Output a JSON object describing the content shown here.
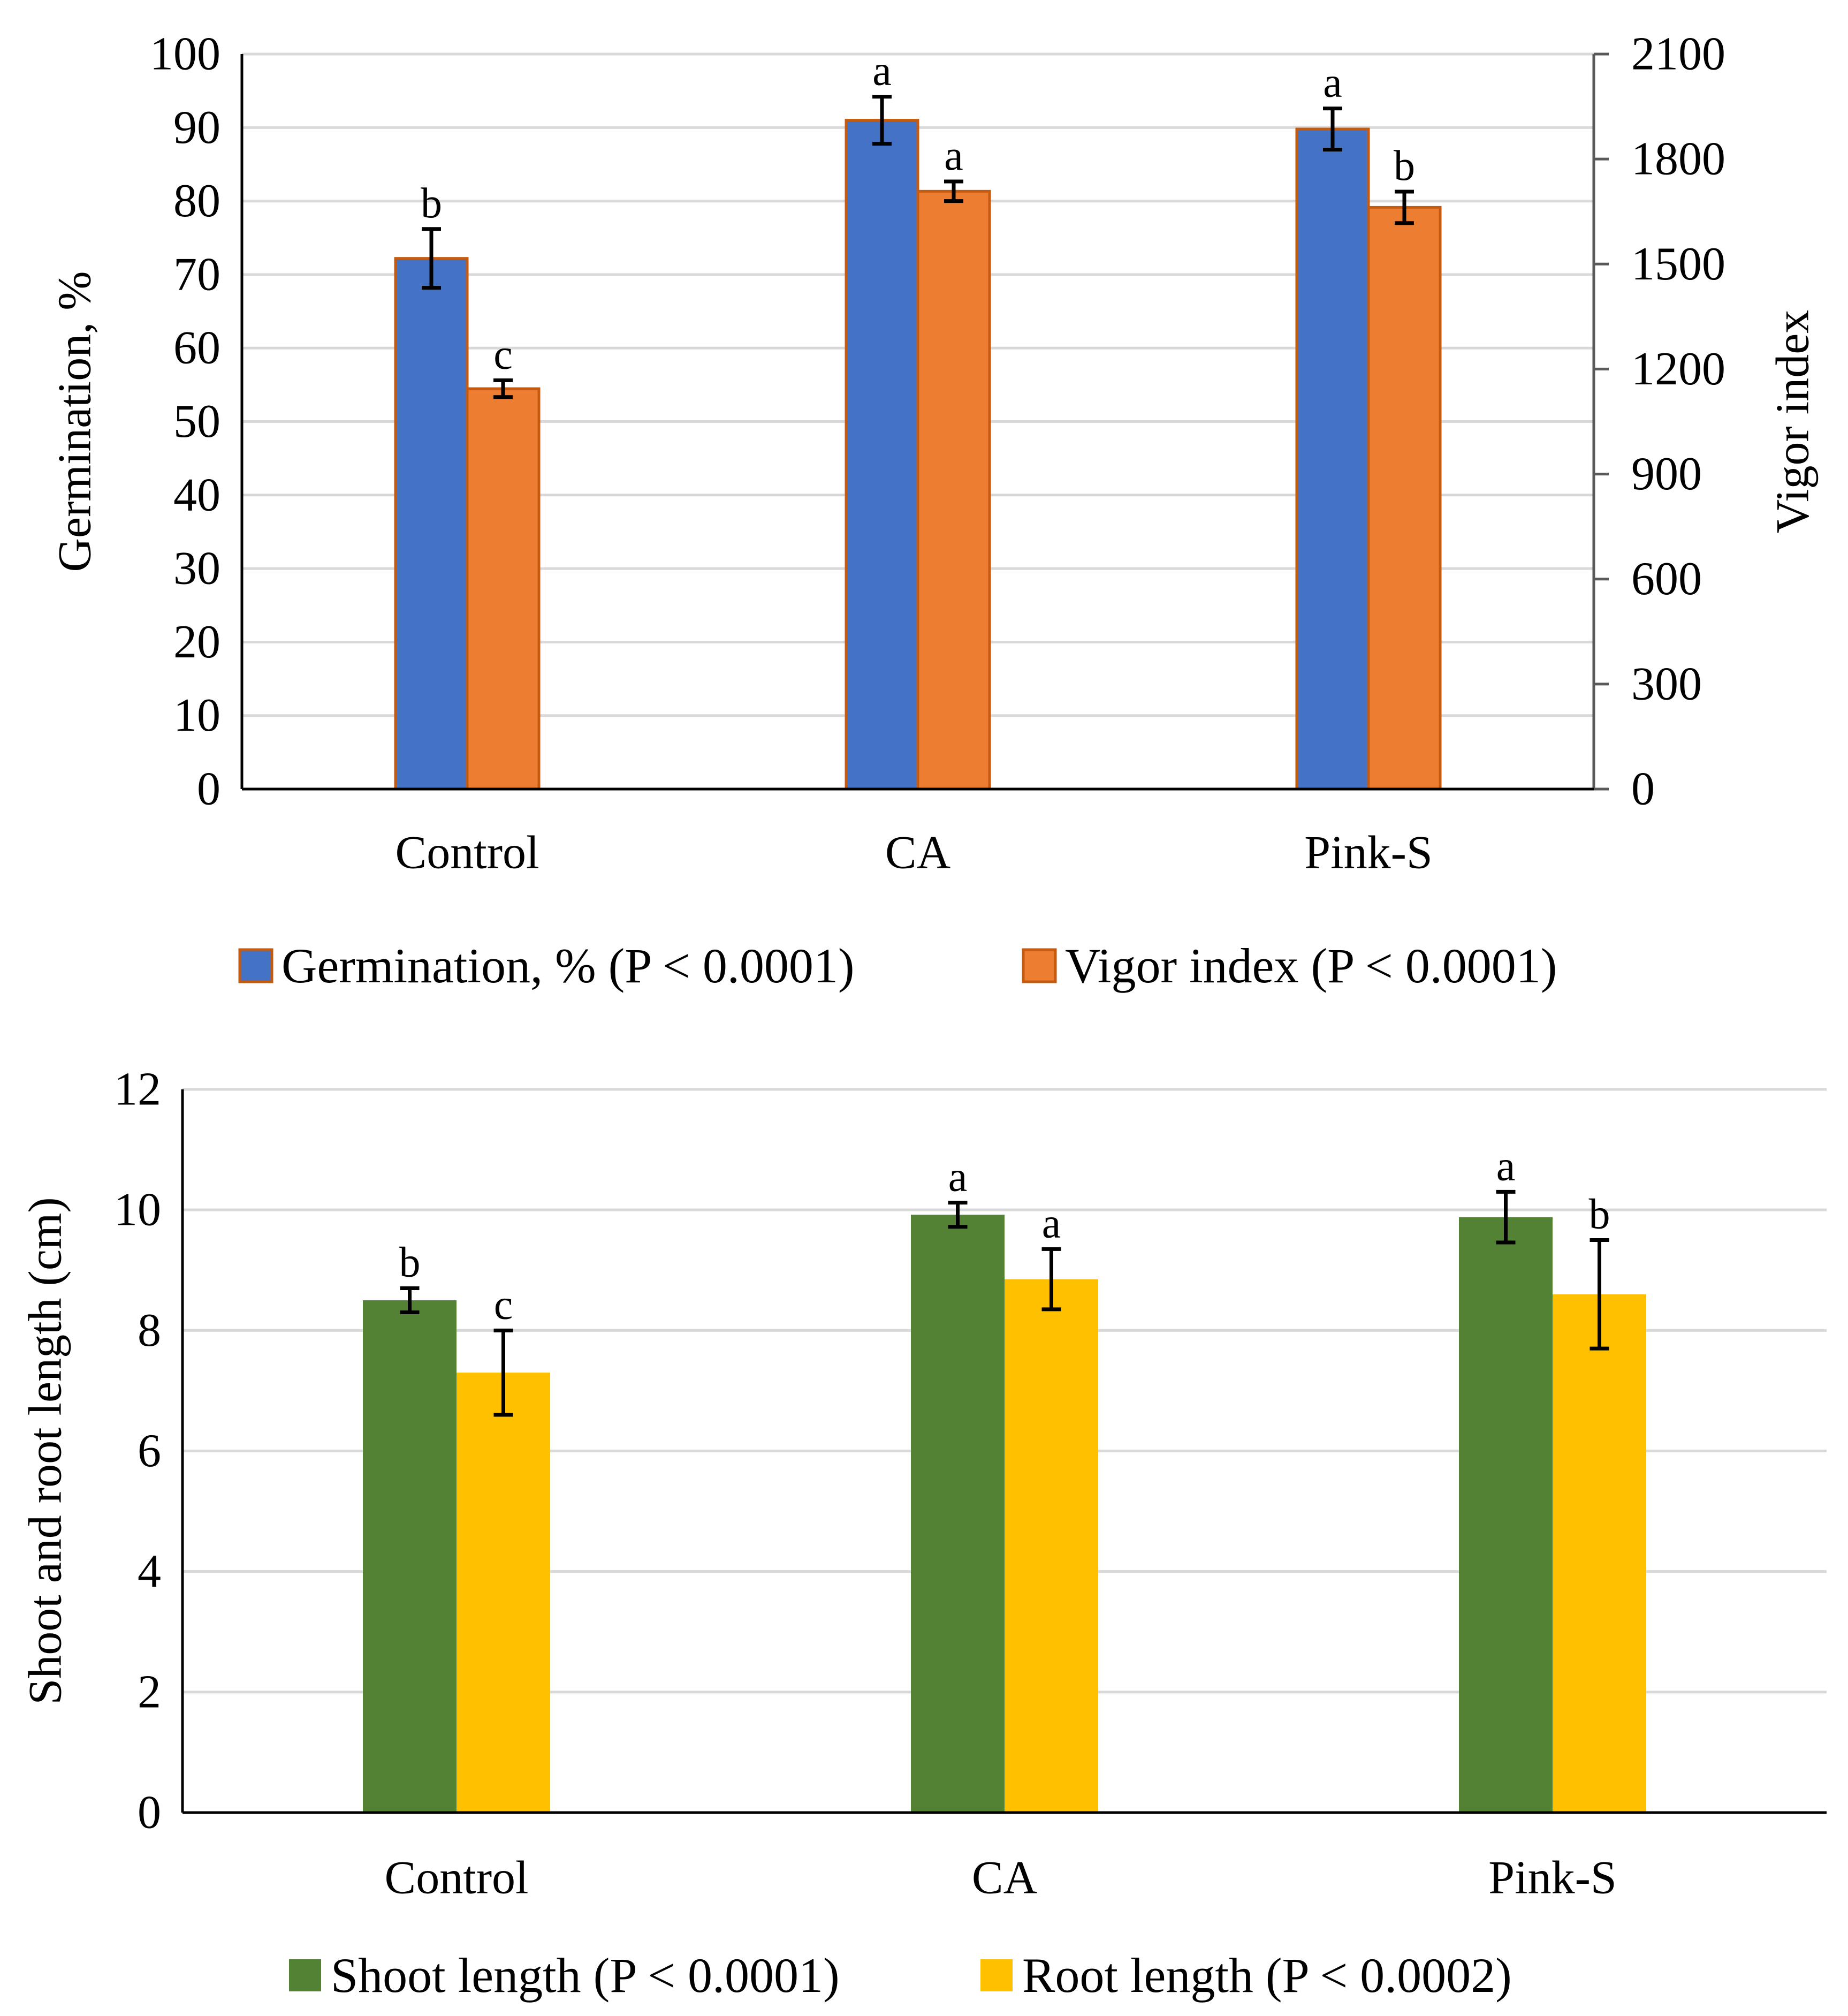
{
  "chart_data": [
    {
      "type": "bar",
      "categories": [
        "Control",
        "CA",
        "Pink-S"
      ],
      "series": [
        {
          "name": "Germination, %",
          "legend": "Germination, % (P < 0.0001)",
          "axis": "left",
          "color": "#4472C4",
          "edge": "#C55A11",
          "values": [
            72.2,
            91,
            89.8
          ],
          "errors": [
            4,
            3.2,
            2.8
          ],
          "letters": [
            "b",
            "a",
            "a"
          ]
        },
        {
          "name": "Vigor index",
          "legend": "Vigor index (P < 0.0001)",
          "axis": "right",
          "color": "#ED7D31",
          "edge": "#C55A11",
          "values": [
            1144,
            1708,
            1662
          ],
          "errors": [
            24,
            28,
            45
          ],
          "letters": [
            "c",
            "a",
            "b"
          ]
        }
      ],
      "ylabel": "Germination, %",
      "ylim": [
        0,
        100
      ],
      "yticks": [
        0,
        10,
        20,
        30,
        40,
        50,
        60,
        70,
        80,
        90,
        100
      ],
      "y2label": "Vigor index",
      "y2lim": [
        0,
        2100
      ],
      "y2ticks": [
        0,
        300,
        600,
        900,
        1200,
        1500,
        1800,
        2100
      ],
      "grid": true,
      "legend_position": "bottom"
    },
    {
      "type": "bar",
      "categories": [
        "Control",
        "CA",
        "Pink-S"
      ],
      "series": [
        {
          "name": "Shoot length",
          "legend": "Shoot length (P < 0.0001)",
          "color": "#548235",
          "values": [
            8.5,
            9.92,
            9.88
          ],
          "errors": [
            0.2,
            0.2,
            0.42
          ],
          "letters": [
            "b",
            "a",
            "a"
          ]
        },
        {
          "name": "Root length",
          "legend": "Root length (P < 0.0002)",
          "color": "#FFC000",
          "values": [
            7.3,
            8.85,
            8.6
          ],
          "errors": [
            0.7,
            0.5,
            0.9
          ],
          "letters": [
            "c",
            "a",
            "b"
          ]
        }
      ],
      "ylabel": "Shoot and root length (cm)",
      "ylim": [
        0,
        12
      ],
      "yticks": [
        0,
        2,
        4,
        6,
        8,
        10,
        12
      ],
      "grid": true,
      "legend_position": "bottom"
    }
  ]
}
